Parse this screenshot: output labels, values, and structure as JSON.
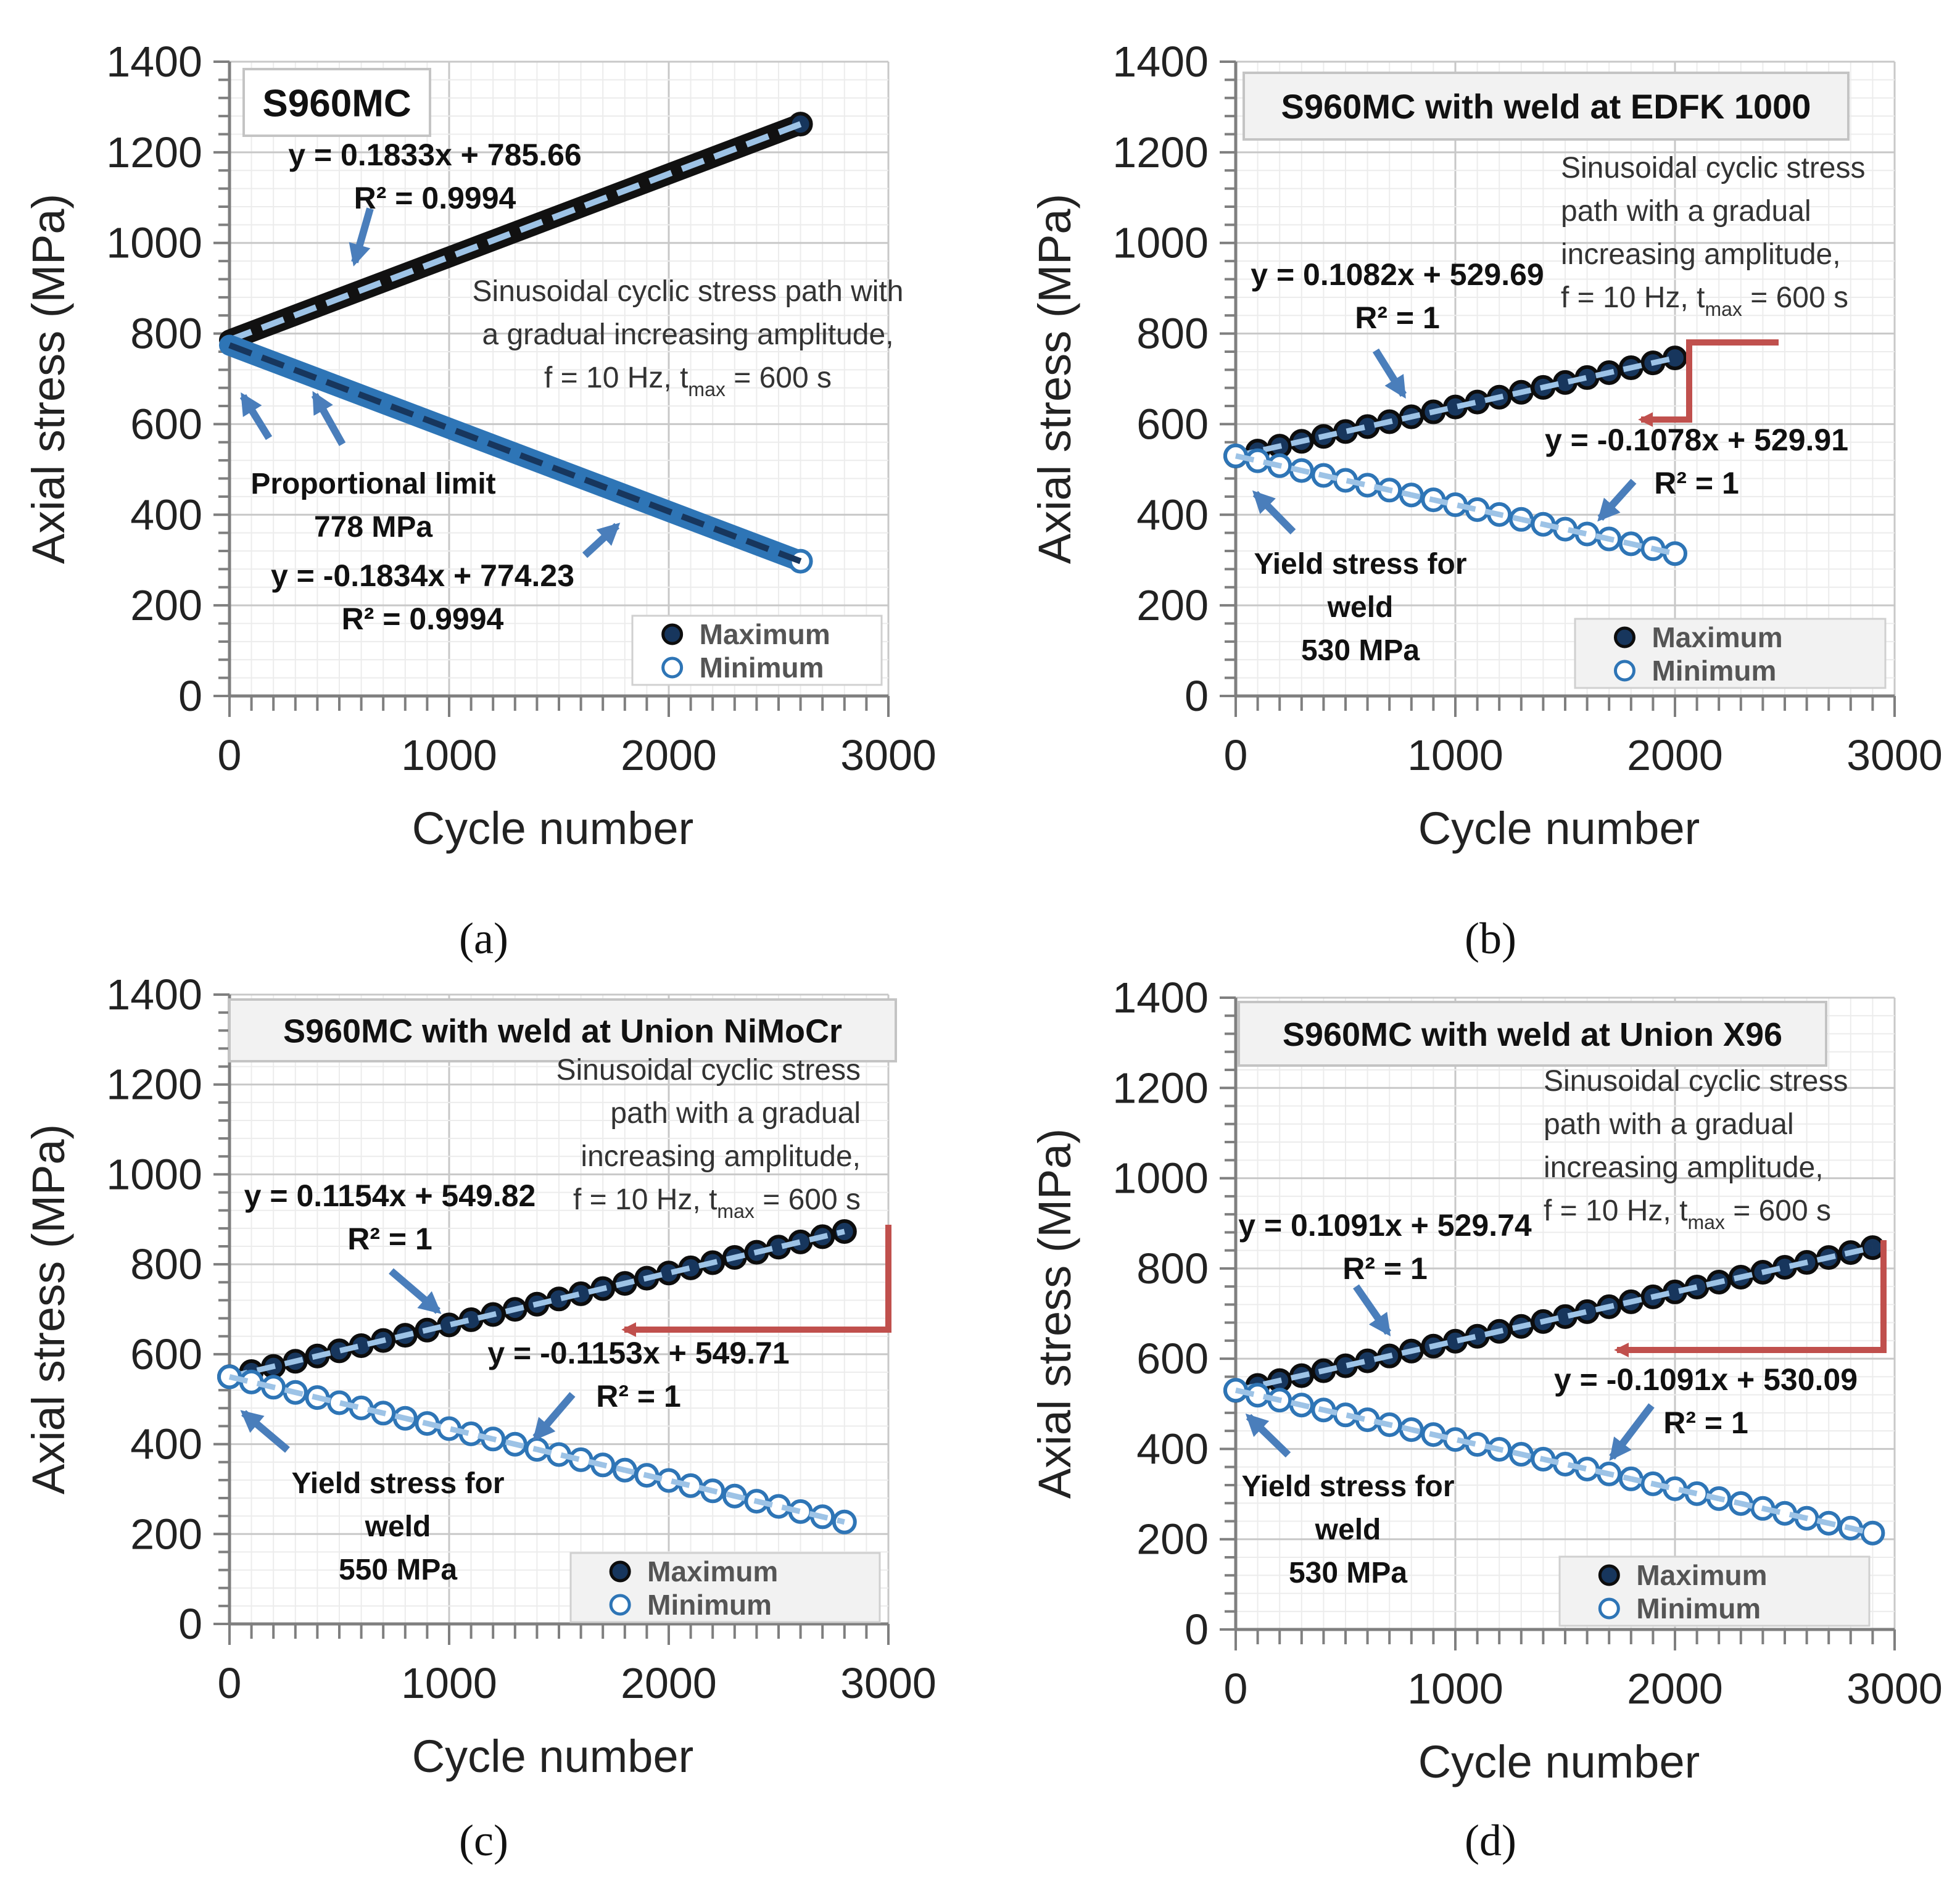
{
  "figure": {
    "legend": {
      "maximum": "Maximum",
      "minimum": "Minimum"
    },
    "colors": {
      "max_fill": "#17365d",
      "min_fill": "#ffffff",
      "ring": "#2e75b6",
      "trend_light": "#9dc3e6",
      "arrow_blue": "#4a7ebb",
      "arrow_red": "#c0504d",
      "grid": "#d9d9d9"
    }
  },
  "chart_data": [
    {
      "type": "scatter",
      "panel": "a",
      "caption": "(a)",
      "title": "S960MC",
      "xlabel": "Cycle number",
      "ylabel": "Axial stress (MPa)",
      "xlim": [
        0,
        3000
      ],
      "ylim": [
        0,
        1400
      ],
      "xticks": [
        0,
        1000,
        2000,
        3000
      ],
      "yticks": [
        0,
        200,
        400,
        600,
        800,
        1000,
        1200,
        1400
      ],
      "grid": true,
      "legend_position": "bottom-right",
      "series": [
        {
          "name": "Maximum",
          "style": "dense",
          "slope": 0.1833,
          "intercept": 785.66,
          "x_start": 0,
          "x_end": 2600
        },
        {
          "name": "Minimum",
          "style": "dense",
          "slope": -0.1834,
          "intercept": 774.23,
          "x_start": 0,
          "x_end": 2600
        }
      ],
      "annotations": {
        "eq_max": "y = 0.1833x + 785.66",
        "r2_max": "R² = 0.9994",
        "eq_min": "y = -0.1834x + 774.23",
        "r2_min": "R² = 0.9994",
        "note_lines": [
          "Sinusoidal cyclic stress path with",
          "a gradual increasing amplitude,"
        ],
        "note_f": "f = 10 Hz, t",
        "note_sub": "max",
        "note_t": " = 600 s",
        "point_label_lines": [
          "Proportional limit",
          "778 MPa"
        ]
      }
    },
    {
      "type": "scatter",
      "panel": "b",
      "caption": "(b)",
      "title": "S960MC with weld at EDFK 1000",
      "xlabel": "Cycle number",
      "ylabel": "Axial stress (MPa)",
      "xlim": [
        0,
        3000
      ],
      "ylim": [
        0,
        1400
      ],
      "xticks": [
        0,
        1000,
        2000,
        3000
      ],
      "yticks": [
        0,
        200,
        400,
        600,
        800,
        1000,
        1200,
        1400
      ],
      "grid": true,
      "legend_position": "bottom-right",
      "series": [
        {
          "name": "Maximum",
          "style": "markers",
          "slope": 0.1082,
          "intercept": 529.69,
          "x_start": 0,
          "x_end": 2000,
          "step": 100
        },
        {
          "name": "Minimum",
          "style": "markers",
          "slope": -0.1078,
          "intercept": 529.91,
          "x_start": 0,
          "x_end": 2000,
          "step": 100
        }
      ],
      "annotations": {
        "eq_max": "y = 0.1082x + 529.69",
        "r2_max": "R² = 1",
        "eq_min": "y = -0.1078x + 529.91",
        "r2_min": "R² = 1",
        "note_lines": [
          "Sinusoidal cyclic stress",
          "path with a gradual",
          "increasing amplitude,"
        ],
        "note_f": "f = 10 Hz, t",
        "note_sub": "max",
        "note_t": " = 600 s",
        "point_label_lines": [
          "Yield stress for",
          "weld",
          "530 MPa"
        ]
      }
    },
    {
      "type": "scatter",
      "panel": "c",
      "caption": "(c)",
      "title": "S960MC with weld at Union NiMoCr",
      "xlabel": "Cycle number",
      "ylabel": "Axial stress (MPa)",
      "xlim": [
        0,
        3000
      ],
      "ylim": [
        0,
        1400
      ],
      "xticks": [
        0,
        1000,
        2000,
        3000
      ],
      "yticks": [
        0,
        200,
        400,
        600,
        800,
        1000,
        1200,
        1400
      ],
      "grid": true,
      "legend_position": "bottom-right",
      "series": [
        {
          "name": "Maximum",
          "style": "markers",
          "slope": 0.1154,
          "intercept": 549.82,
          "x_start": 0,
          "x_end": 2800,
          "step": 100
        },
        {
          "name": "Minimum",
          "style": "markers",
          "slope": -0.1153,
          "intercept": 549.71,
          "x_start": 0,
          "x_end": 2800,
          "step": 100
        }
      ],
      "annotations": {
        "eq_max": "y = 0.1154x + 549.82",
        "r2_max": "R² = 1",
        "eq_min": "y = -0.1153x + 549.71",
        "r2_min": "R² = 1",
        "note_lines": [
          "Sinusoidal cyclic stress",
          "path with a gradual",
          "increasing amplitude,"
        ],
        "note_f": "f = 10 Hz, t",
        "note_sub": "max",
        "note_t": " = 600 s",
        "point_label_lines": [
          "Yield stress for",
          "weld",
          "550 MPa"
        ]
      }
    },
    {
      "type": "scatter",
      "panel": "d",
      "caption": "(d)",
      "title": "S960MC with weld at Union X96",
      "xlabel": "Cycle number",
      "ylabel": "Axial stress (MPa)",
      "xlim": [
        0,
        3000
      ],
      "ylim": [
        0,
        1400
      ],
      "xticks": [
        0,
        1000,
        2000,
        3000
      ],
      "yticks": [
        0,
        200,
        400,
        600,
        800,
        1000,
        1200,
        1400
      ],
      "grid": true,
      "legend_position": "bottom-right",
      "series": [
        {
          "name": "Maximum",
          "style": "markers",
          "slope": 0.1091,
          "intercept": 529.74,
          "x_start": 0,
          "x_end": 2900,
          "step": 100
        },
        {
          "name": "Minimum",
          "style": "markers",
          "slope": -0.1091,
          "intercept": 530.09,
          "x_start": 0,
          "x_end": 2900,
          "step": 100
        }
      ],
      "annotations": {
        "eq_max": "y = 0.1091x + 529.74",
        "r2_max": "R² = 1",
        "eq_min": "y = -0.1091x + 530.09",
        "r2_min": "R² = 1",
        "note_lines": [
          "Sinusoidal cyclic stress",
          "path with a gradual",
          "increasing amplitude,"
        ],
        "note_f": "f = 10 Hz, t",
        "note_sub": "max",
        "note_t": " = 600 s",
        "point_label_lines": [
          "Yield stress for",
          "weld",
          "530 MPa"
        ]
      }
    }
  ]
}
